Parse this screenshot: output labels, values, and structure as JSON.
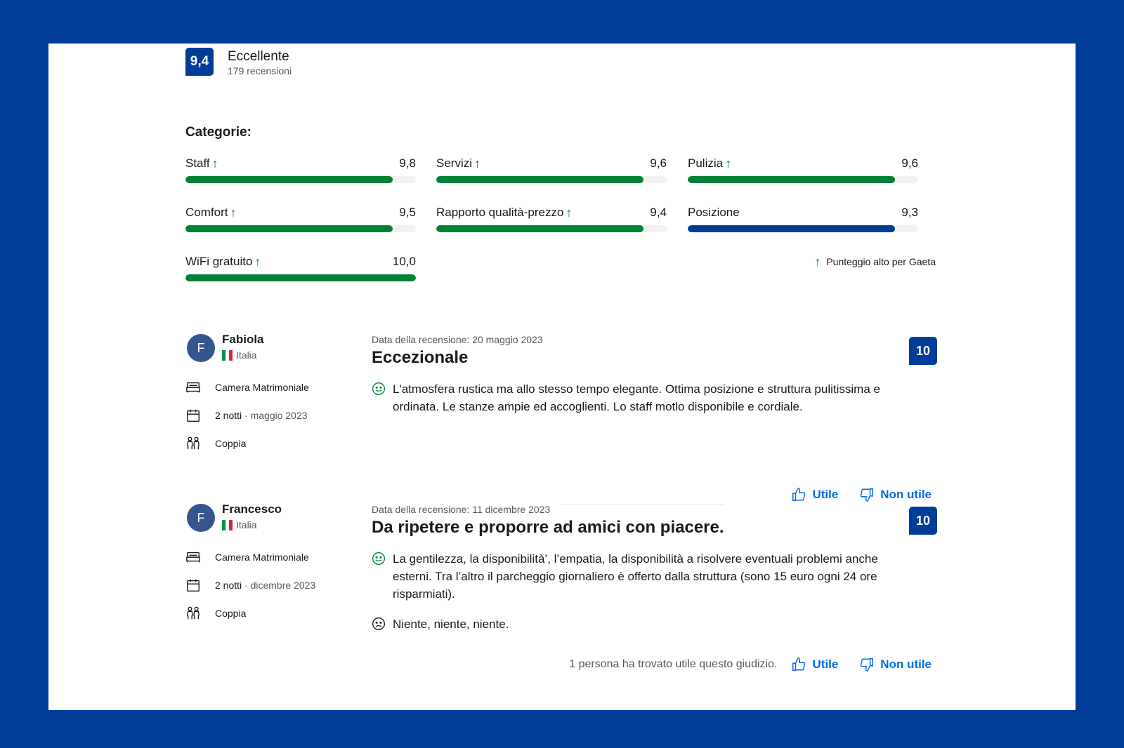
{
  "overall": {
    "score": "9,4",
    "label": "Eccellente",
    "count": "179 recensioni"
  },
  "categories_title": "Categorie:",
  "categories": [
    {
      "name": "Staff",
      "value": "9,8",
      "fill": 0.9,
      "high": true
    },
    {
      "name": "Servizi",
      "value": "9,6",
      "fill": 0.9,
      "high": true
    },
    {
      "name": "Pulizia",
      "value": "9,6",
      "fill": 0.9,
      "high": true
    },
    {
      "name": "Comfort",
      "value": "9,5",
      "fill": 0.9,
      "high": true
    },
    {
      "name": "Rapporto qualità-prezzo",
      "value": "9,4",
      "fill": 0.9,
      "high": true
    },
    {
      "name": "Posizione",
      "value": "9,3",
      "fill": 0.9,
      "high": false
    },
    {
      "name": "WiFi gratuito",
      "value": "10,0",
      "fill": 1.0,
      "high": true
    }
  ],
  "legend_note": "Punteggio alto per Gaeta",
  "colors": {
    "brand": "#003c98",
    "green": "#008234",
    "link": "#006ce4"
  },
  "reviews": [
    {
      "initial": "F",
      "name": "Fabiola",
      "country": "Italia",
      "room": "Camera Matrimoniale",
      "nights": "2 notti",
      "stay_date": "· maggio 2023",
      "traveler": "Coppia",
      "date": "Data della recensione: 20 maggio 2023",
      "title": "Eccezionale",
      "score": "10",
      "positive": "L'atmosfera rustica ma allo stesso tempo elegante. Ottima posizione e struttura pulitissima e ordinata. Le stanze ampie ed accoglienti. Lo staff motlo disponibile e cordiale.",
      "negative": "",
      "helpful_note": "",
      "helpful": "Utile",
      "not_helpful": "Non utile"
    },
    {
      "initial": "F",
      "name": "Francesco",
      "country": "Italia",
      "room": "Camera Matrimoniale",
      "nights": "2 notti",
      "stay_date": "· dicembre 2023",
      "traveler": "Coppia",
      "date": "Data della recensione: 11 dicembre 2023",
      "title": "Da ripetere e proporre ad amici con piacere.",
      "score": "10",
      "positive": "La gentilezza, la disponibilità’, l’empatia, la disponibilità a risolvere eventuali problemi anche esterni. Tra l’altro il parcheggio giornaliero è offerto dalla struttura (sono 15 euro ogni 24 ore risparmiati).",
      "negative": "Niente, niente, niente.",
      "helpful_note": "1 persona ha trovato utile questo giudizio.",
      "helpful": "Utile",
      "not_helpful": "Non utile"
    }
  ]
}
